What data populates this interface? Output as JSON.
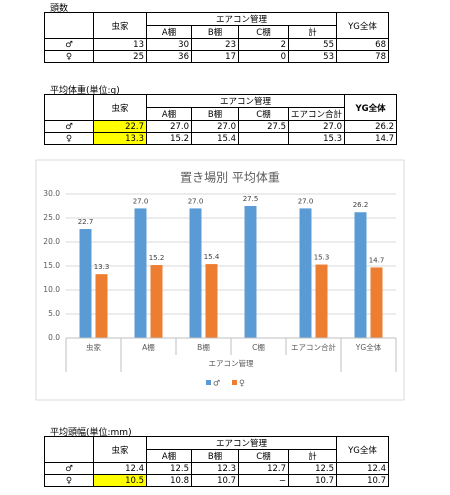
{
  "tables": [
    {
      "title": "頭数",
      "insect": "虫家",
      "aircon": "エアコン管理",
      "sub": [
        "A棚",
        "B棚",
        "C棚",
        "計"
      ],
      "total": "YG全体",
      "highlight_color": "#ffff00",
      "rows": [
        {
          "label": "♂",
          "cells": [
            "13",
            "30",
            "23",
            "2",
            "55",
            "68"
          ],
          "highlight": []
        },
        {
          "label": "♀",
          "cells": [
            "25",
            "36",
            "17",
            "0",
            "53",
            "78"
          ],
          "highlight": []
        }
      ]
    },
    {
      "title": "平均体重(単位:g)",
      "insect": "虫家",
      "aircon": "エアコン管理",
      "sub": [
        "A棚",
        "B棚",
        "C棚",
        "エアコン合計"
      ],
      "total": "YG全体",
      "highlight_color": "#ffff00",
      "rows": [
        {
          "label": "♂",
          "cells": [
            "22.7",
            "27.0",
            "27.0",
            "27.5",
            "27.0",
            "26.2"
          ],
          "highlight": [
            0
          ]
        },
        {
          "label": "♀",
          "cells": [
            "13.3",
            "15.2",
            "15.4",
            null,
            "15.3",
            "14.7"
          ],
          "highlight": [
            0
          ]
        }
      ]
    },
    {
      "title": "平均頭幅(単位:mm)",
      "insect": "虫家",
      "aircon": "エアコン管理",
      "sub": [
        "A棚",
        "B棚",
        "C棚",
        "計"
      ],
      "total": "YG全体",
      "highlight_color": "#ffff00",
      "rows": [
        {
          "label": "♂",
          "cells": [
            "12.4",
            "12.5",
            "12.3",
            "12.7",
            "12.5",
            "12.4"
          ],
          "highlight": []
        },
        {
          "label": "♀",
          "cells": [
            "10.5",
            "10.8",
            "10.7",
            "−",
            "10.7",
            "10.7"
          ],
          "highlight": [
            0
          ]
        }
      ]
    }
  ],
  "chart_data": {
    "type": "bar",
    "title": "置き場別 平均体重",
    "categories": [
      "虫家",
      "A棚",
      "B棚",
      "C棚",
      "エアコン合計",
      "YG全体"
    ],
    "group": {
      "label": "エアコン管理",
      "span": [
        1,
        4
      ]
    },
    "series": [
      {
        "name": "♂",
        "color": "#5b9bd5",
        "values": [
          22.7,
          27,
          27,
          27.5,
          27,
          26.2
        ],
        "value_labels": [
          "22.7",
          "27.0",
          "27.0",
          "27.5",
          "27.0",
          "26.2"
        ]
      },
      {
        "name": "♀",
        "color": "#ed7d31",
        "values": [
          13.3,
          15.2,
          15.4,
          null,
          15.3,
          14.7
        ],
        "value_labels": [
          "13.3",
          "15.2",
          "15.4",
          null,
          "15.3",
          "14.7"
        ]
      }
    ],
    "ylim": [
      0,
      30
    ],
    "yticks": [
      {
        "value": 0,
        "label": "0.0"
      },
      {
        "value": 5,
        "label": "5.0"
      },
      {
        "value": 10,
        "label": "10.0"
      },
      {
        "value": 15,
        "label": "15.0"
      },
      {
        "value": 20,
        "label": "20.0"
      },
      {
        "value": 25,
        "label": "25.0"
      },
      {
        "value": 30,
        "label": "30.0"
      }
    ],
    "grid": true,
    "legend": "bottom"
  }
}
